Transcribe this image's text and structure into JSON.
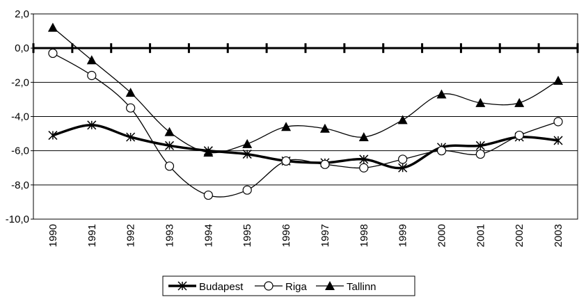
{
  "chart_data": {
    "type": "line",
    "categories": [
      "1990",
      "1991",
      "1992",
      "1993",
      "1994",
      "1995",
      "1996",
      "1997",
      "1998",
      "1999",
      "2000",
      "2001",
      "2002",
      "2003"
    ],
    "series": [
      {
        "name": "Budapest",
        "color": "#000000",
        "marker": "asterisk",
        "values": [
          -5.1,
          -4.5,
          -5.2,
          -5.7,
          -6.0,
          -6.2,
          -6.6,
          -6.7,
          -6.5,
          -7.0,
          -5.8,
          -5.7,
          -5.2,
          -5.4
        ]
      },
      {
        "name": "Riga",
        "color": "#000000",
        "marker": "circle",
        "values": [
          -0.3,
          -1.6,
          -3.5,
          -6.9,
          -8.6,
          -8.3,
          -6.6,
          -6.8,
          -7.0,
          -6.5,
          -6.0,
          -6.2,
          -5.1,
          -4.3
        ]
      },
      {
        "name": "Tallinn",
        "color": "#000000",
        "marker": "triangle",
        "values": [
          1.2,
          -0.7,
          -2.6,
          -4.9,
          -6.1,
          -5.6,
          -4.6,
          -4.7,
          -5.2,
          -4.2,
          -2.7,
          -3.2,
          -3.2,
          -1.9
        ]
      }
    ],
    "ylim": [
      -10,
      2
    ],
    "yticks": [
      {
        "value": -10,
        "label": "-10,0"
      },
      {
        "value": -8,
        "label": "-8,0"
      },
      {
        "value": -6,
        "label": "-6,0"
      },
      {
        "value": -4,
        "label": "-4,0"
      },
      {
        "value": -2,
        "label": "-2,0"
      },
      {
        "value": 0,
        "label": "0,0"
      },
      {
        "value": 2,
        "label": "2,0"
      }
    ],
    "grid": true,
    "legend": "bottom"
  }
}
